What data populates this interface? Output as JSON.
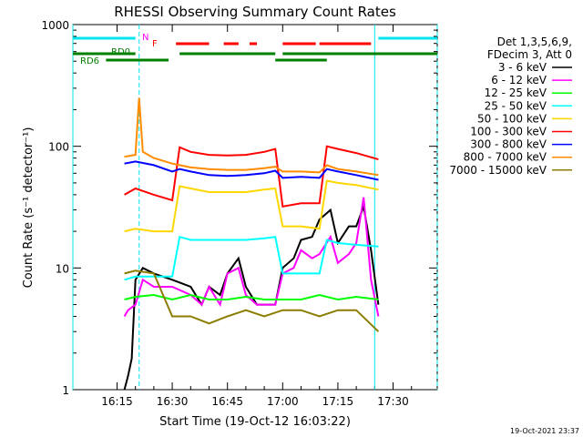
{
  "chart_data": {
    "type": "line",
    "title": "RHESSI Observing Summary Count Rates",
    "xlabel": "Start Time (19-Oct-12 16:03:22)",
    "ylabel": "Count Rate (s⁻¹ detector⁻¹)",
    "yscale": "log",
    "ylim": [
      1,
      1000
    ],
    "xlim": [
      "16:03",
      "17:42"
    ],
    "x_ticks": [
      "16:15",
      "16:30",
      "16:45",
      "17:00",
      "17:15",
      "17:30"
    ],
    "y_ticks": [
      "1",
      "10",
      "100",
      "1000"
    ],
    "legend_header": [
      "Det 1,3,5,6,9,",
      "FDecim 3, Att 0"
    ],
    "footer": "19-Oct-2021 23:37",
    "legend_position": "right",
    "grid": false,
    "markers": [
      {
        "label": "N",
        "color": "#ff00ff"
      },
      {
        "label": "F",
        "color": "#ff0000"
      },
      {
        "label": "RD0",
        "color": "#008000"
      },
      {
        "label": "RD6",
        "color": "#008000"
      }
    ],
    "flags": {
      "night": {
        "color": "#00e5ee",
        "spans": [
          [
            "16:03",
            "16:20"
          ],
          [
            "17:26",
            "17:42"
          ]
        ]
      },
      "flare": {
        "color": "#ff0000",
        "spans": [
          [
            "16:31",
            "16:40"
          ],
          [
            "16:44",
            "16:48"
          ],
          [
            "16:51",
            "16:53"
          ],
          [
            "17:00",
            "17:09"
          ],
          [
            "17:10",
            "17:24"
          ]
        ]
      },
      "rd0": {
        "color": "#008000",
        "spans": [
          [
            "16:03",
            "16:20"
          ],
          [
            "16:32",
            "16:58"
          ],
          [
            "17:00",
            "17:42"
          ]
        ]
      },
      "rd6": {
        "color": "#008000",
        "spans": [
          [
            "16:12",
            "16:29"
          ],
          [
            "16:58",
            "17:12"
          ]
        ]
      }
    },
    "vlines": [
      {
        "x": "16:03",
        "color": "#00e5ee",
        "dashed": false
      },
      {
        "x": "16:21",
        "color": "#00e5ee",
        "dashed": true
      },
      {
        "x": "17:25",
        "color": "#00e5ee",
        "dashed": false
      },
      {
        "x": "17:42",
        "color": "#00e5ee",
        "dashed": true
      }
    ],
    "series": [
      {
        "name": "3 - 6 keV",
        "color": "#000000",
        "x": [
          "16:17",
          "16:18",
          "16:19",
          "16:20",
          "16:22",
          "16:25",
          "16:30",
          "16:35",
          "16:38",
          "16:40",
          "16:43",
          "16:45",
          "16:48",
          "16:50",
          "16:53",
          "16:55",
          "16:58",
          "17:00",
          "17:03",
          "17:05",
          "17:08",
          "17:10",
          "17:13",
          "17:15",
          "17:18",
          "17:20",
          "17:22",
          "17:24",
          "17:26"
        ],
        "y": [
          1,
          1.3,
          1.8,
          8,
          10,
          9,
          8,
          7,
          5,
          7,
          6,
          9,
          12,
          7,
          5,
          5,
          5,
          10,
          12,
          17,
          18,
          25,
          30,
          16,
          22,
          22,
          32,
          14,
          5
        ]
      },
      {
        "name": "6 - 12 keV",
        "color": "#ff00ff",
        "x": [
          "16:17",
          "16:18",
          "16:20",
          "16:22",
          "16:25",
          "16:30",
          "16:35",
          "16:38",
          "16:40",
          "16:43",
          "16:45",
          "16:48",
          "16:50",
          "16:53",
          "16:55",
          "16:58",
          "17:00",
          "17:03",
          "17:05",
          "17:08",
          "17:10",
          "17:13",
          "17:15",
          "17:18",
          "17:20",
          "17:22",
          "17:24",
          "17:26"
        ],
        "y": [
          4,
          4.5,
          5,
          8,
          7,
          7,
          6,
          5,
          7,
          5,
          9,
          10,
          6,
          5,
          5,
          5,
          9,
          10,
          14,
          12,
          13,
          18,
          11,
          13,
          16,
          38,
          8,
          4
        ]
      },
      {
        "name": "12 - 25 keV",
        "color": "#00ff00",
        "x": [
          "16:17",
          "16:20",
          "16:25",
          "16:30",
          "16:35",
          "16:40",
          "16:45",
          "16:50",
          "16:55",
          "17:00",
          "17:05",
          "17:10",
          "17:15",
          "17:20",
          "17:26"
        ],
        "y": [
          5.5,
          5.8,
          6,
          5.5,
          6,
          5.5,
          5.5,
          5.8,
          5.5,
          5.5,
          5.5,
          6,
          5.5,
          5.8,
          5.5
        ]
      },
      {
        "name": "25 - 50 keV",
        "color": "#00ffff",
        "x": [
          "16:17",
          "16:20",
          "16:25",
          "16:30",
          "16:32",
          "16:35",
          "16:40",
          "16:45",
          "16:50",
          "16:55",
          "16:58",
          "17:00",
          "17:05",
          "17:10",
          "17:12",
          "17:15",
          "17:20",
          "17:26"
        ],
        "y": [
          8,
          8.5,
          8.5,
          8.5,
          18,
          17,
          17,
          17,
          17,
          17.5,
          18,
          9,
          9,
          9,
          17,
          16,
          15.5,
          15
        ]
      },
      {
        "name": "50 - 100 keV",
        "color": "#ffd700",
        "x": [
          "16:17",
          "16:20",
          "16:25",
          "16:30",
          "16:32",
          "16:35",
          "16:40",
          "16:45",
          "16:50",
          "16:55",
          "16:58",
          "17:00",
          "17:05",
          "17:10",
          "17:12",
          "17:15",
          "17:20",
          "17:26"
        ],
        "y": [
          20,
          21,
          20,
          20,
          47,
          45,
          42,
          42,
          42,
          44,
          45,
          22,
          22,
          21,
          52,
          50,
          48,
          44
        ]
      },
      {
        "name": "100 - 300 keV",
        "color": "#ff0000",
        "x": [
          "16:17",
          "16:20",
          "16:25",
          "16:30",
          "16:32",
          "16:35",
          "16:40",
          "16:45",
          "16:50",
          "16:55",
          "16:58",
          "17:00",
          "17:05",
          "17:10",
          "17:12",
          "17:15",
          "17:20",
          "17:26"
        ],
        "y": [
          40,
          45,
          40,
          36,
          98,
          90,
          85,
          84,
          85,
          90,
          95,
          32,
          34,
          34,
          100,
          95,
          88,
          78
        ]
      },
      {
        "name": "300 - 800 keV",
        "color": "#0000ff",
        "x": [
          "16:17",
          "16:20",
          "16:25",
          "16:30",
          "16:32",
          "16:35",
          "16:40",
          "16:45",
          "16:50",
          "16:55",
          "16:58",
          "17:00",
          "17:05",
          "17:10",
          "17:12",
          "17:15",
          "17:20",
          "17:26"
        ],
        "y": [
          72,
          75,
          70,
          62,
          65,
          62,
          58,
          57,
          58,
          60,
          63,
          55,
          56,
          55,
          65,
          62,
          58,
          53
        ]
      },
      {
        "name": "800 - 7000 keV",
        "color": "#ff8c00",
        "x": [
          "16:17",
          "16:20",
          "16:21",
          "16:22",
          "16:25",
          "16:30",
          "16:32",
          "16:35",
          "16:40",
          "16:45",
          "16:50",
          "16:55",
          "16:58",
          "17:00",
          "17:05",
          "17:10",
          "17:12",
          "17:15",
          "17:20",
          "17:26"
        ],
        "y": [
          82,
          85,
          250,
          90,
          80,
          72,
          70,
          67,
          65,
          64,
          64,
          66,
          68,
          62,
          62,
          61,
          70,
          65,
          62,
          58
        ]
      },
      {
        "name": "7000 - 15000 keV",
        "color": "#8b7d00",
        "x": [
          "16:17",
          "16:20",
          "16:25",
          "16:30",
          "16:35",
          "16:40",
          "16:45",
          "16:50",
          "16:55",
          "17:00",
          "17:05",
          "17:10",
          "17:15",
          "17:20",
          "17:26"
        ],
        "y": [
          9,
          9.5,
          9,
          4,
          4,
          3.5,
          4,
          4.5,
          4,
          4.5,
          4.5,
          4,
          4.5,
          4.5,
          3
        ]
      }
    ]
  }
}
